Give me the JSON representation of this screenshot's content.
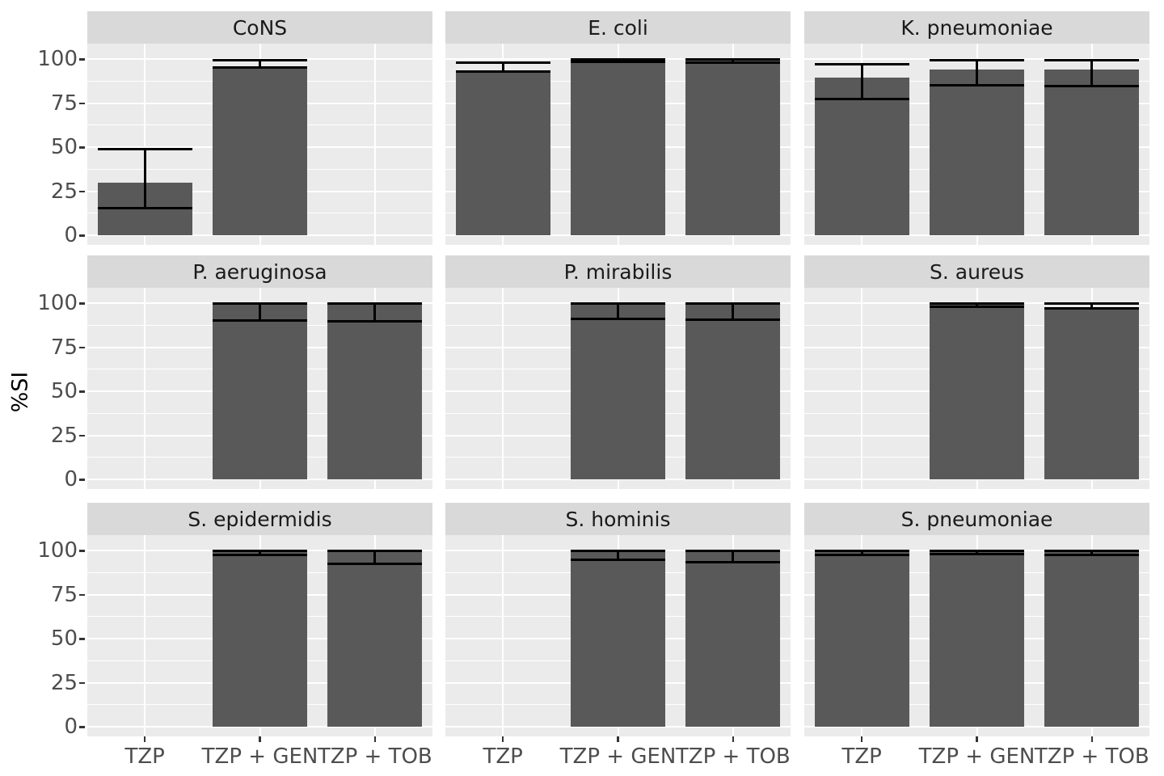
{
  "chart_data": {
    "type": "bar",
    "title": "",
    "ylabel": "%SI",
    "xlabel": "",
    "categories": [
      "TZP",
      "TZP + GEN",
      "TZP + TOB"
    ],
    "yticks": [
      "0",
      "25",
      "50",
      "75",
      "100"
    ],
    "ylim": [
      0,
      100
    ],
    "grid": true,
    "legend": "none",
    "facet_layout": {
      "rows": 3,
      "cols": 3
    },
    "facets": [
      {
        "title": "CoNS",
        "values": [
          30,
          96,
          null
        ],
        "error_low": [
          15.5,
          95,
          null
        ],
        "error_high": [
          49,
          99.5,
          null
        ]
      },
      {
        "title": "E. coli",
        "values": [
          93.5,
          99.5,
          99
        ],
        "error_low": [
          93,
          98.5,
          98
        ],
        "error_high": [
          98,
          100,
          100
        ]
      },
      {
        "title": "K. pneumoniae",
        "values": [
          89.5,
          94,
          94
        ],
        "error_low": [
          77.5,
          85,
          84.5
        ],
        "error_high": [
          97,
          99.5,
          99.5
        ]
      },
      {
        "title": "P. aeruginosa",
        "values": [
          null,
          100,
          100
        ],
        "error_low": [
          null,
          90,
          89.5
        ],
        "error_high": [
          null,
          100,
          100
        ]
      },
      {
        "title": "P. mirabilis",
        "values": [
          null,
          100,
          100
        ],
        "error_low": [
          null,
          91,
          90.5
        ],
        "error_high": [
          null,
          100,
          100
        ]
      },
      {
        "title": "S. aureus",
        "values": [
          null,
          99.5,
          97.5
        ],
        "error_low": [
          null,
          98,
          97
        ],
        "error_high": [
          null,
          100,
          100
        ]
      },
      {
        "title": "S. epidermidis",
        "values": [
          null,
          99.5,
          99.5
        ],
        "error_low": [
          null,
          97.7,
          92.3
        ],
        "error_high": [
          null,
          100,
          100
        ]
      },
      {
        "title": "S. hominis",
        "values": [
          null,
          99.5,
          99.5
        ],
        "error_low": [
          null,
          94.7,
          93.5
        ],
        "error_high": [
          null,
          100,
          100
        ]
      },
      {
        "title": "S. pneumoniae",
        "values": [
          99.5,
          99.5,
          99.5
        ],
        "error_low": [
          97.4,
          98,
          97.7
        ],
        "error_high": [
          100,
          100,
          100
        ]
      }
    ],
    "colors": {
      "bar": "#595959",
      "error_bar": "#000000",
      "panel_background": "#EBEBEB",
      "strip_background": "#D9D9D9",
      "gridline": "#FFFFFF",
      "tick_text": "#4D4D4D",
      "strip_text": "#1A1A1A"
    }
  }
}
